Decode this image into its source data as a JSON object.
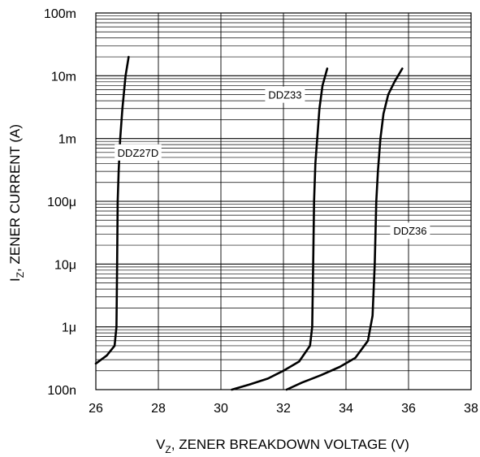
{
  "chart_data": {
    "type": "line",
    "title": "",
    "xlabel_main": "V",
    "xlabel_sub": "Z",
    "xlabel_rest": ", ZENER BREAKDOWN VOLTAGE (V)",
    "ylabel_main": "I",
    "ylabel_sub": "Z",
    "ylabel_rest": ", ZENER CURRENT (A)",
    "xlim": [
      26,
      38
    ],
    "ylim": [
      1e-07,
      0.1
    ],
    "yscale": "log",
    "grid": true,
    "x_ticks": [
      26,
      28,
      30,
      32,
      34,
      36,
      38
    ],
    "x_tick_labels": [
      "26",
      "28",
      "30",
      "32",
      "34",
      "36",
      "38"
    ],
    "y_ticks": [
      1e-07,
      1e-06,
      1e-05,
      0.0001,
      0.001,
      0.01,
      0.1
    ],
    "y_tick_labels": [
      "100n",
      "1μ",
      "10μ",
      "100μ",
      "1m",
      "10m",
      "100m"
    ],
    "series": [
      {
        "name": "DDZ27D",
        "x": [
          26.0,
          26.35,
          26.6,
          26.66,
          26.68,
          26.7,
          26.73,
          26.78,
          26.85,
          26.95,
          27.05
        ],
        "y": [
          2.6e-07,
          3.5e-07,
          5e-07,
          1e-06,
          1e-05,
          0.0001,
          0.0003,
          0.001,
          0.003,
          0.01,
          0.02
        ]
      },
      {
        "name": "DDZ33",
        "x": [
          30.35,
          30.9,
          31.5,
          32.0,
          32.5,
          32.85,
          32.92,
          32.95,
          32.98,
          33.02,
          33.08,
          33.15,
          33.25,
          33.4
        ],
        "y": [
          1e-07,
          1.2e-07,
          1.5e-07,
          2e-07,
          2.8e-07,
          5e-07,
          1e-06,
          1e-05,
          0.0001,
          0.0004,
          0.001,
          0.003,
          0.007,
          0.013
        ]
      },
      {
        "name": "DDZ36",
        "x": [
          32.1,
          32.6,
          33.2,
          33.8,
          34.3,
          34.7,
          34.85,
          34.92,
          34.97,
          35.02,
          35.1,
          35.2,
          35.35,
          35.55,
          35.8
        ],
        "y": [
          1e-07,
          1.3e-07,
          1.7e-07,
          2.3e-07,
          3.2e-07,
          6e-07,
          1.5e-06,
          1e-05,
          0.0001,
          0.0003,
          0.001,
          0.0025,
          0.005,
          0.008,
          0.013
        ]
      }
    ]
  }
}
